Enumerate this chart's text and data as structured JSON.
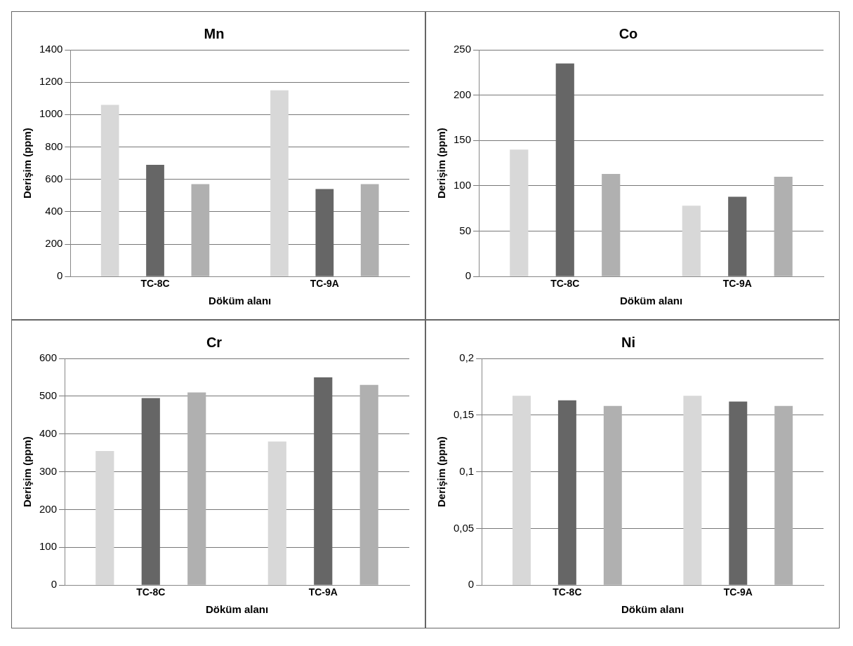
{
  "chart_data": [
    {
      "type": "bar",
      "title": "Mn",
      "xlabel": "Döküm alanı",
      "ylabel": "Derişim (ppm)",
      "categories": [
        "TC-8C",
        "TC-9A"
      ],
      "series": [
        {
          "color": "#d8d8d8",
          "values": [
            1060,
            1150
          ]
        },
        {
          "color": "#666666",
          "values": [
            690,
            540
          ]
        },
        {
          "color": "#b0b0b0",
          "values": [
            570,
            570
          ]
        }
      ],
      "ylim": [
        0,
        1400
      ],
      "yticks": [
        0,
        200,
        400,
        600,
        800,
        1000,
        1200,
        1400
      ],
      "grid": "y"
    },
    {
      "type": "bar",
      "title": "Co",
      "xlabel": "Döküm alanı",
      "ylabel": "Derişim (ppm)",
      "categories": [
        "TC-8C",
        "TC-9A"
      ],
      "series": [
        {
          "color": "#d8d8d8",
          "values": [
            140,
            78
          ]
        },
        {
          "color": "#666666",
          "values": [
            235,
            88
          ]
        },
        {
          "color": "#b0b0b0",
          "values": [
            113,
            110
          ]
        }
      ],
      "ylim": [
        0,
        250
      ],
      "yticks": [
        0,
        50,
        100,
        150,
        200,
        250
      ],
      "grid": "y"
    },
    {
      "type": "bar",
      "title": "Cr",
      "xlabel": "Döküm alanı",
      "ylabel": "Derişim (ppm)",
      "categories": [
        "TC-8C",
        "TC-9A"
      ],
      "series": [
        {
          "color": "#d8d8d8",
          "values": [
            355,
            380
          ]
        },
        {
          "color": "#666666",
          "values": [
            495,
            550
          ]
        },
        {
          "color": "#b0b0b0",
          "values": [
            510,
            530
          ]
        }
      ],
      "ylim": [
        0,
        600
      ],
      "yticks": [
        0,
        100,
        200,
        300,
        400,
        500,
        600
      ],
      "grid": "y"
    },
    {
      "type": "bar",
      "title": "Ni",
      "xlabel": "Döküm alanı",
      "ylabel": "Derişim (ppm)",
      "categories": [
        "TC-8C",
        "TC-9A"
      ],
      "series": [
        {
          "color": "#d8d8d8",
          "values": [
            0.167,
            0.167
          ]
        },
        {
          "color": "#666666",
          "values": [
            0.163,
            0.162
          ]
        },
        {
          "color": "#b0b0b0",
          "values": [
            0.158,
            0.158
          ]
        }
      ],
      "ylim": [
        0,
        0.2
      ],
      "yticks": [
        0,
        {
          "value": 0.05,
          "label": "0,05"
        },
        {
          "value": 0.1,
          "label": "0,1"
        },
        {
          "value": 0.15,
          "label": "0,15"
        },
        {
          "value": 0.2,
          "label": "0,2"
        }
      ],
      "grid": "y"
    }
  ]
}
